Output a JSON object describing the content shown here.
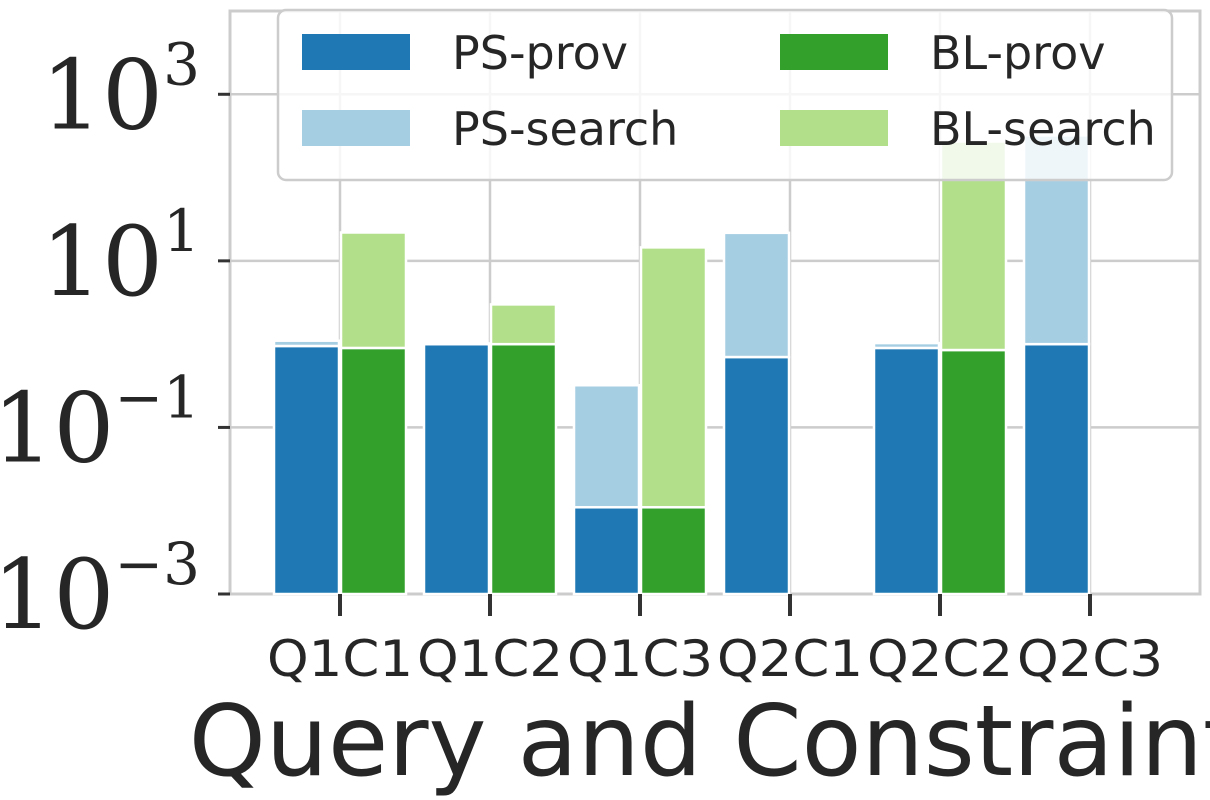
{
  "chart_data": {
    "type": "bar",
    "stacked": true,
    "log_scale_y": true,
    "xlabel": "Query and Constraint",
    "ylabel": "",
    "ylim": [
      0.001,
      10000
    ],
    "yticks": [
      0.001,
      0.1,
      10,
      1000
    ],
    "ytick_labels": [
      {
        "base": "10",
        "exp": "−3"
      },
      {
        "base": "10",
        "exp": "−1"
      },
      {
        "base": "10",
        "exp": "1"
      },
      {
        "base": "10",
        "exp": "3"
      }
    ],
    "grid": true,
    "legend_position": "top",
    "categories": [
      "Q1C1",
      "Q1C2",
      "Q1C3",
      "Q2C1",
      "Q2C2",
      "Q2C3"
    ],
    "series": [
      {
        "name": "PS-prov",
        "color": "#1f78b4",
        "group": "PS",
        "values": [
          0.95,
          1.0,
          0.011,
          0.7,
          0.9,
          1.0
        ]
      },
      {
        "name": "PS-search",
        "color": "#a6cee3",
        "group": "PS",
        "values": [
          0.15,
          0.02,
          0.31,
          21,
          0.13,
          320
        ]
      },
      {
        "name": "BL-prov",
        "color": "#33a02c",
        "group": "BL",
        "values": [
          0.9,
          1.0,
          0.011,
          null,
          0.85,
          null
        ]
      },
      {
        "name": "BL-search",
        "color": "#b2df8a",
        "group": "BL",
        "values": [
          21,
          2.0,
          14.5,
          null,
          270,
          null
        ]
      }
    ]
  }
}
